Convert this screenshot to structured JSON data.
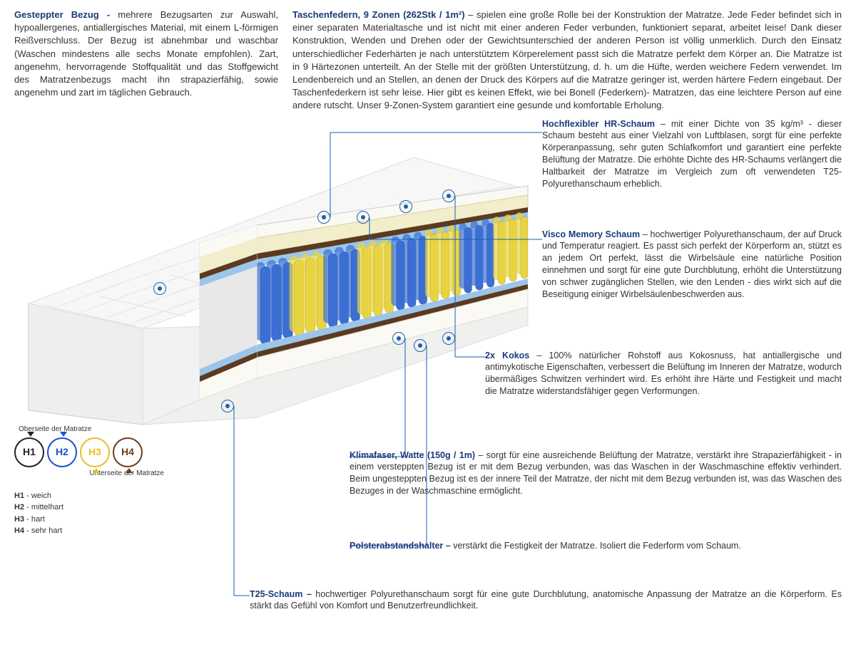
{
  "colors": {
    "heading": "#1a3a7a",
    "marker": "#1a5fb4",
    "h1_circle": "#232323",
    "h2_circle": "#1a4fd6",
    "h3_circle": "#e6c02a",
    "h4_circle": "#6b3e1f",
    "spring_blue": "#3b6fd4",
    "spring_yellow": "#e8d440",
    "foam_cream": "#f2eecb",
    "foam_white": "#f6f6f4",
    "foam_blue": "#9cc5ea",
    "cocos": "#5a3a20"
  },
  "top_left": {
    "heading": "Gesteppter Bezug -",
    "text": " mehrere Bezugsarten zur Auswahl, hypoallergenes, antiallergisches Material, mit einem L-förmigen Reißverschluss. Der Bezug ist abnehmbar und waschbar (Waschen mindestens alle sechs Monate empfohlen). Zart, angenehm, hervorragende Stoffqualität und das Stoffgewicht des Matratzenbezugs macht ihn strapazierfähig, sowie angenehm und zart im täglichen Gebrauch."
  },
  "top_right": {
    "heading": "Taschenfedern, 9 Zonen (262Stk / 1m²)",
    "text": " – spielen eine große Rolle bei der Konstruktion der Matratze. Jede Feder befindet sich in einer separaten Materialtasche und ist nicht mit einer anderen Feder verbunden, funktioniert separat, arbeitet leise! Dank dieser Konstruktion, Wenden und Drehen oder der Gewichtsunterschied der anderen Person ist völlig unmerklich. Durch den Einsatz unterschiedlicher Federhärten je nach unterstütztem Körperelement passt sich die Matratze perfekt dem Körper an. Die Matratze ist in 9 Härtezonen unterteilt. An der Stelle mit der größten Unterstützung, d. h. um die Hüfte, werden weichere Federn verwendet. Im Lendenbereich und an Stellen, an denen der Druck des Körpers auf die Matratze geringer ist, werden härtere Federn eingebaut. Der Taschenfederkern ist sehr leise. Hier gibt es keinen Effekt, wie bei Bonell (Federkern)- Matratzen, das eine leichtere Person auf eine andere rutscht. Unser 9-Zonen-System garantiert eine gesunde und komfortable Erholung."
  },
  "labels": {
    "hr": {
      "heading": "Hochflexibler HR-Schaum",
      "text": " – mit einer Dichte von 35 kg/m³ - dieser Schaum besteht aus einer Vielzahl von Luftblasen, sorgt für eine perfekte Körperanpassung, sehr guten Schlafkomfort und garantiert eine perfekte Belüftung der Matratze. Die erhöhte Dichte des HR-Schaums verlängert die Haltbarkeit der Matratze im Vergleich zum oft verwendeten T25-Polyurethanschaum erheblich."
    },
    "visco": {
      "heading": "Visco Memory Schaum",
      "text": " – hochwertiger Polyurethanschaum, der auf Druck und Temperatur reagiert. Es passt sich perfekt der Körperform an, stützt es an jedem Ort perfekt, lässt die Wirbelsäule eine natürliche Position einnehmen und sorgt für eine gute Durchblutung, erhöht die Unterstützung von schwer zugänglichen Stellen, wie den Lenden - dies wirkt sich auf die Beseitigung einiger Wirbelsäulenbeschwerden aus."
    },
    "kokos": {
      "heading": "2x Kokos",
      "text": " – 100% natürlicher Rohstoff aus Kokosnuss, hat antiallergische und antimykotische Eigenschaften, verbessert die Belüftung im Inneren der Matratze, wodurch übermäßiges Schwitzen verhindert wird. Es erhöht ihre Härte und Festigkeit und macht die Matratze widerstandsfähiger gegen Verformungen."
    },
    "klima": {
      "heading": "Klimafaser, Watte (150g / 1m)",
      "text": " – sorgt für eine ausreichende Belüftung der Matratze, verstärkt ihre Strapazierfähigkeit - in einem versteppten Bezug ist er mit dem Bezug verbunden, was das Waschen in der Waschmaschine effektiv verhindert. Beim ungesteppten Bezug ist es der innere Teil der Matratze, der nicht mit dem Bezug verbunden ist, was das Waschen des Bezuges in der Waschmaschine ermöglicht."
    },
    "polster": {
      "heading": "Polsterabstandshalter –",
      "text": " verstärkt die Festigkeit der Matratze. Isoliert die Federform vom Schaum."
    },
    "t25": {
      "heading": "T25-Schaum –",
      "text": " hochwertiger Polyurethanschaum sorgt für eine gute Durchblutung, anatomische Anpassung der Matratze an die Körperform. Es stärkt das Gefühl von Komfort und Benutzerfreundlichkeit."
    }
  },
  "hardness": {
    "top_label": "Oberseite der Matratze",
    "bottom_label": "Unterseite der Matratze",
    "items": [
      {
        "code": "H1",
        "name": "weich"
      },
      {
        "code": "H2",
        "name": "mittelhart"
      },
      {
        "code": "H3",
        "name": "hart"
      },
      {
        "code": "H4",
        "name": "sehr hart"
      }
    ]
  }
}
